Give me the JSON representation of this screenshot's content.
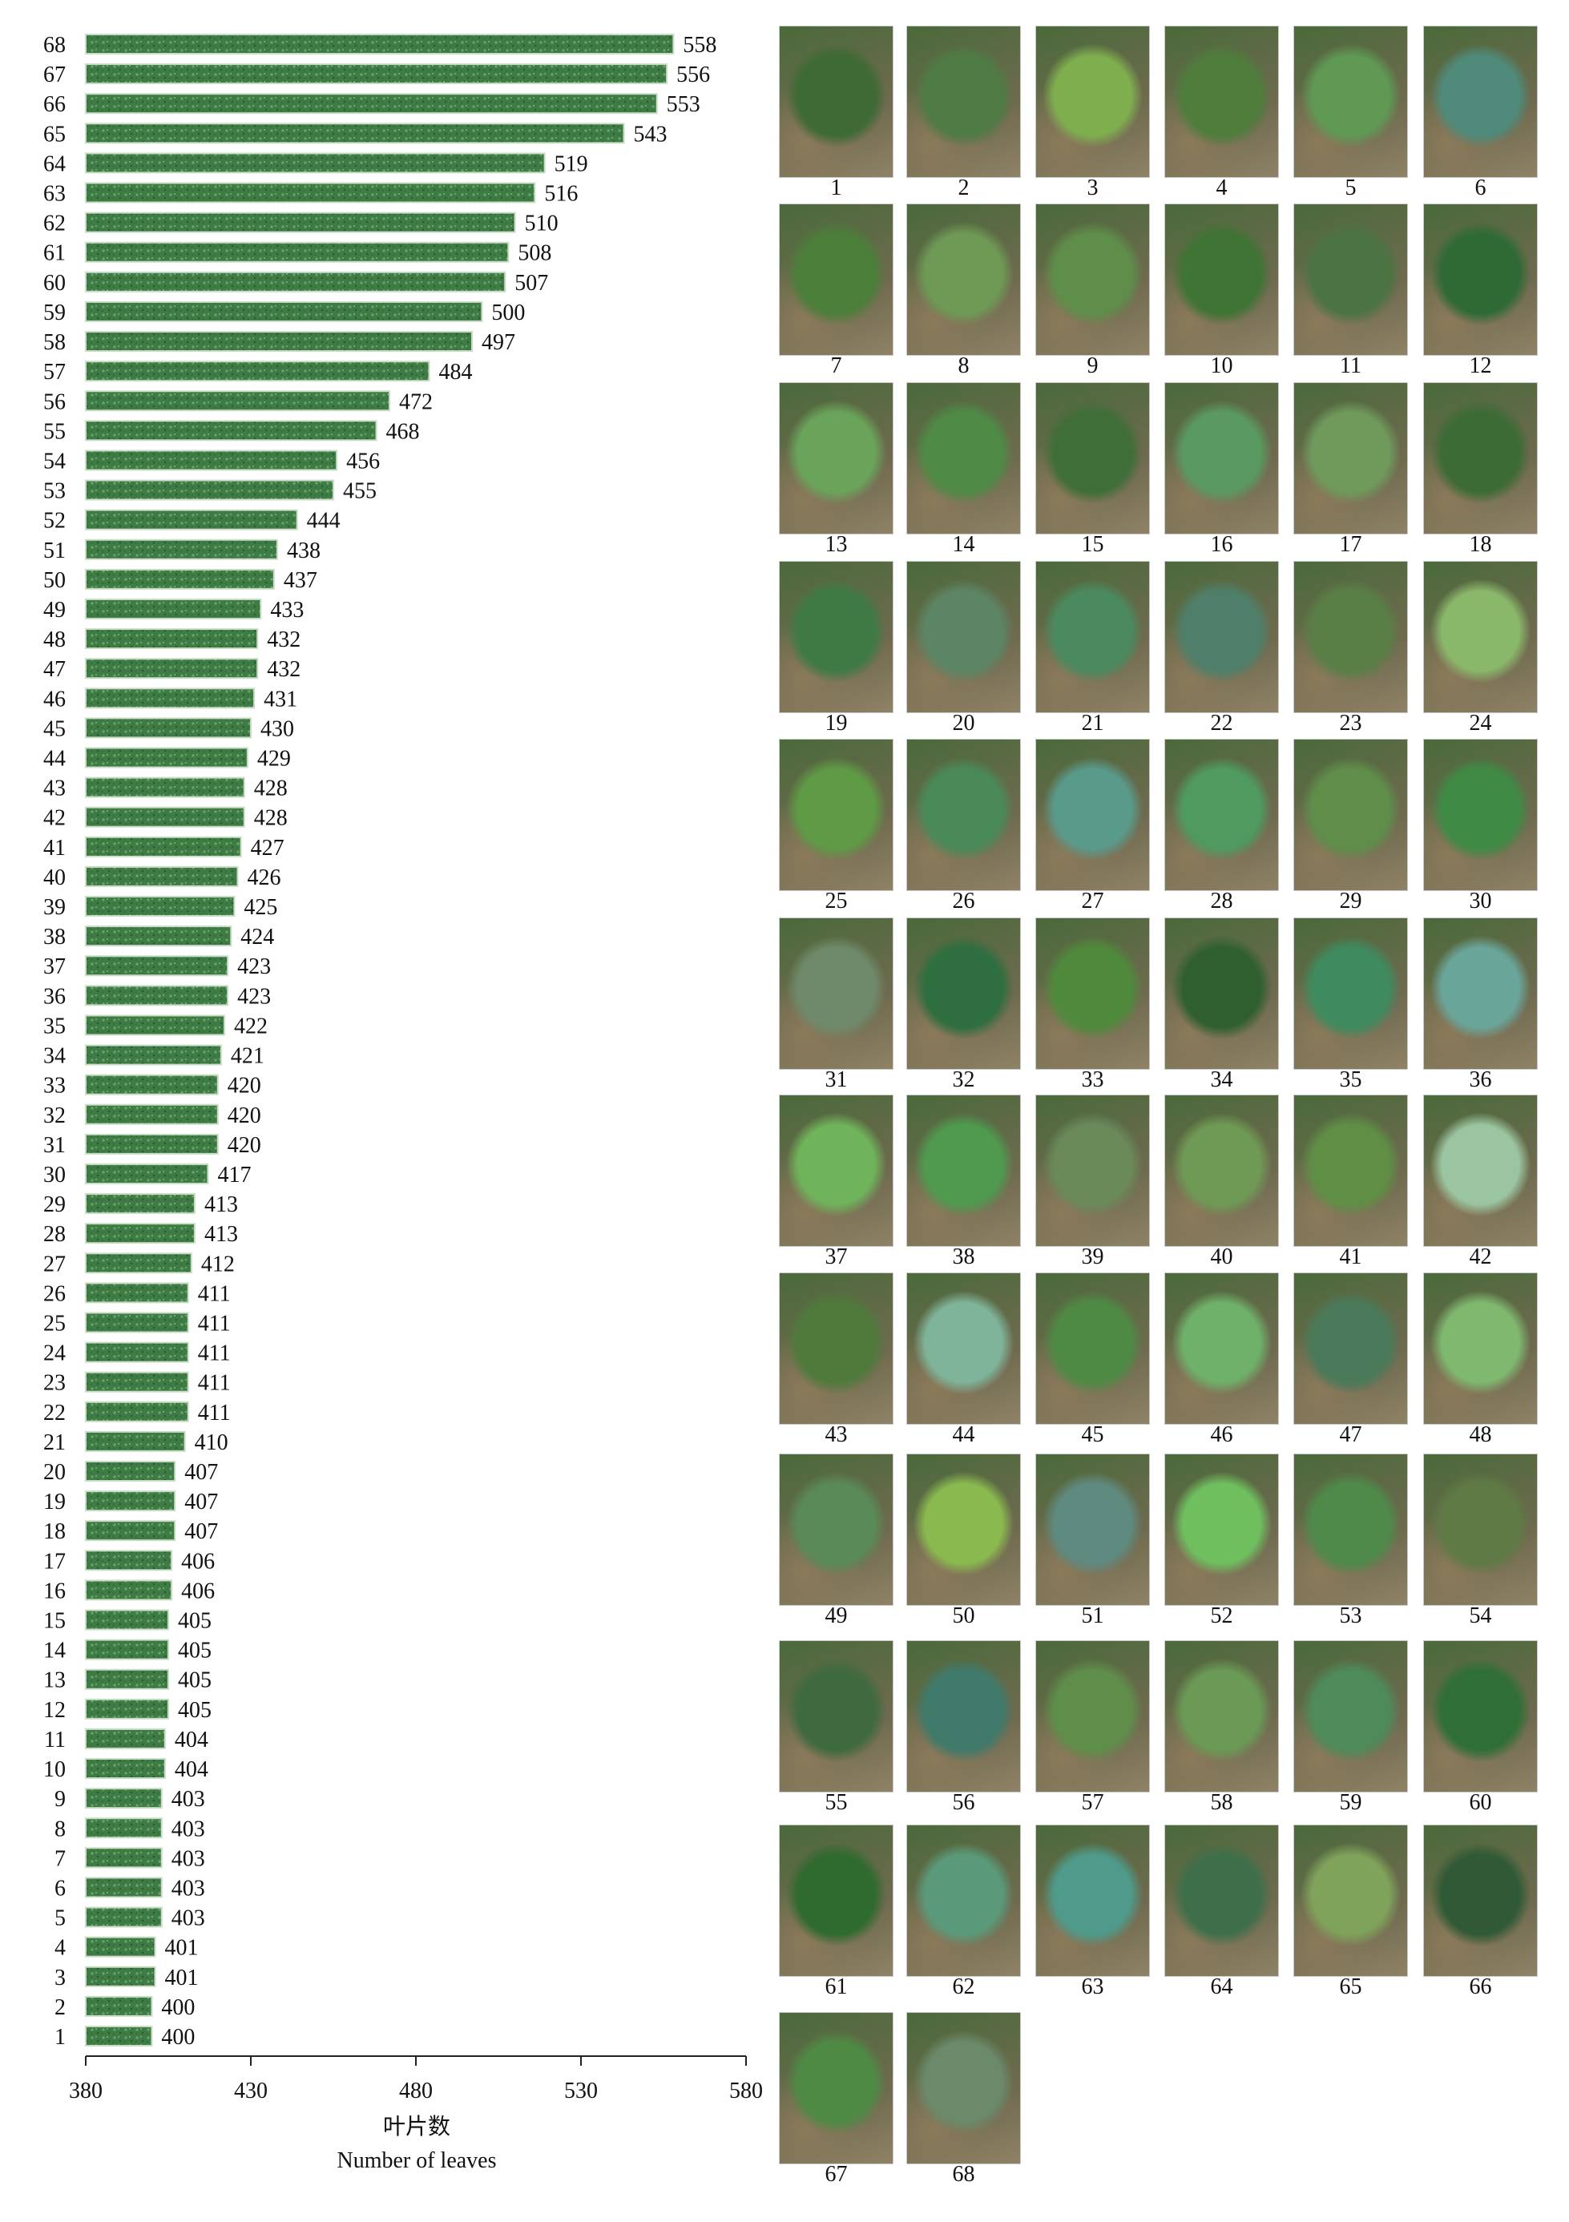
{
  "chart_data": {
    "type": "bar",
    "orientation": "horizontal",
    "xlabel_cn": "叶片数",
    "xlabel": "Number of leaves",
    "ylabel": "",
    "xlim": [
      380,
      580
    ],
    "xticks": [
      380,
      430,
      480,
      530,
      580
    ],
    "grid": false,
    "categories": [
      "1",
      "2",
      "3",
      "4",
      "5",
      "6",
      "7",
      "8",
      "9",
      "10",
      "11",
      "12",
      "13",
      "14",
      "15",
      "16",
      "17",
      "18",
      "19",
      "20",
      "21",
      "22",
      "23",
      "24",
      "25",
      "26",
      "27",
      "28",
      "29",
      "30",
      "31",
      "32",
      "33",
      "34",
      "35",
      "36",
      "37",
      "38",
      "39",
      "40",
      "41",
      "42",
      "43",
      "44",
      "45",
      "46",
      "47",
      "48",
      "49",
      "50",
      "51",
      "52",
      "53",
      "54",
      "55",
      "56",
      "57",
      "58",
      "59",
      "60",
      "61",
      "62",
      "63",
      "64",
      "65",
      "66",
      "67",
      "68"
    ],
    "values": [
      400,
      400,
      401,
      401,
      403,
      403,
      403,
      403,
      403,
      404,
      404,
      405,
      405,
      405,
      405,
      406,
      406,
      407,
      407,
      407,
      410,
      411,
      411,
      411,
      411,
      411,
      412,
      413,
      413,
      417,
      420,
      420,
      420,
      421,
      422,
      423,
      423,
      424,
      425,
      426,
      427,
      428,
      428,
      429,
      430,
      431,
      432,
      432,
      433,
      437,
      438,
      444,
      455,
      456,
      468,
      472,
      484,
      497,
      500,
      507,
      508,
      510,
      516,
      519,
      543,
      553,
      556,
      558
    ],
    "bar_color": "#3f7a45"
  },
  "photos": {
    "labels": [
      "1",
      "2",
      "3",
      "4",
      "5",
      "6",
      "7",
      "8",
      "9",
      "10",
      "11",
      "12",
      "13",
      "14",
      "15",
      "16",
      "17",
      "18",
      "19",
      "20",
      "21",
      "22",
      "23",
      "24",
      "25",
      "26",
      "27",
      "28",
      "29",
      "30",
      "31",
      "32",
      "33",
      "34",
      "35",
      "36",
      "37",
      "38",
      "39",
      "40",
      "41",
      "42",
      "43",
      "44",
      "45",
      "46",
      "47",
      "48",
      "49",
      "50",
      "51",
      "52",
      "53",
      "54",
      "55",
      "56",
      "57",
      "58",
      "59",
      "60",
      "61",
      "62",
      "63",
      "64",
      "65",
      "66",
      "67",
      "68"
    ],
    "colors": [
      "#3d6a35",
      "#4f7b45",
      "#7fae4f",
      "#4f7d3c",
      "#5f9954",
      "#4f8a7a",
      "#4b7f3a",
      "#6e9a55",
      "#5f8e4a",
      "#3f7434",
      "#4b7442",
      "#2f6a35",
      "#6aa45b",
      "#4f8a46",
      "#3f6e38",
      "#5a9a60",
      "#6f9a5c",
      "#3c6b35",
      "#3f7a45",
      "#5c8565",
      "#4b8a5f",
      "#4f7f6a",
      "#5a7f46",
      "#8ab86a",
      "#5f9a45",
      "#4a8a59",
      "#5a9a8a",
      "#4f9a5f",
      "#5f8e4a",
      "#3f8a45",
      "#6f8a6a",
      "#2e6e3f",
      "#4f8a3c",
      "#2f5f2f",
      "#3f8a5f",
      "#6aa59a",
      "#6fb35a",
      "#4f9a4f",
      "#6a8a5a",
      "#6f9a55",
      "#5f8f45",
      "#9ac5a0",
      "#4f7a3c",
      "#7fb39a",
      "#4f8a45",
      "#6fb06a",
      "#4a7a5a",
      "#7fb86f",
      "#5a8a55",
      "#8aba4f",
      "#5f8a7f",
      "#6fbf5f",
      "#4f8a4a",
      "#5f7a45",
      "#3f6a3f",
      "#3f7a6a",
      "#5f8e4a",
      "#6a9a55",
      "#4f8a5a",
      "#2f6f35",
      "#2f6a2f",
      "#5a9a7a",
      "#4f9a8a",
      "#3f6f4a",
      "#7fa35a",
      "#2f5a35",
      "#4f8a45",
      "#6a8a6a"
    ]
  }
}
